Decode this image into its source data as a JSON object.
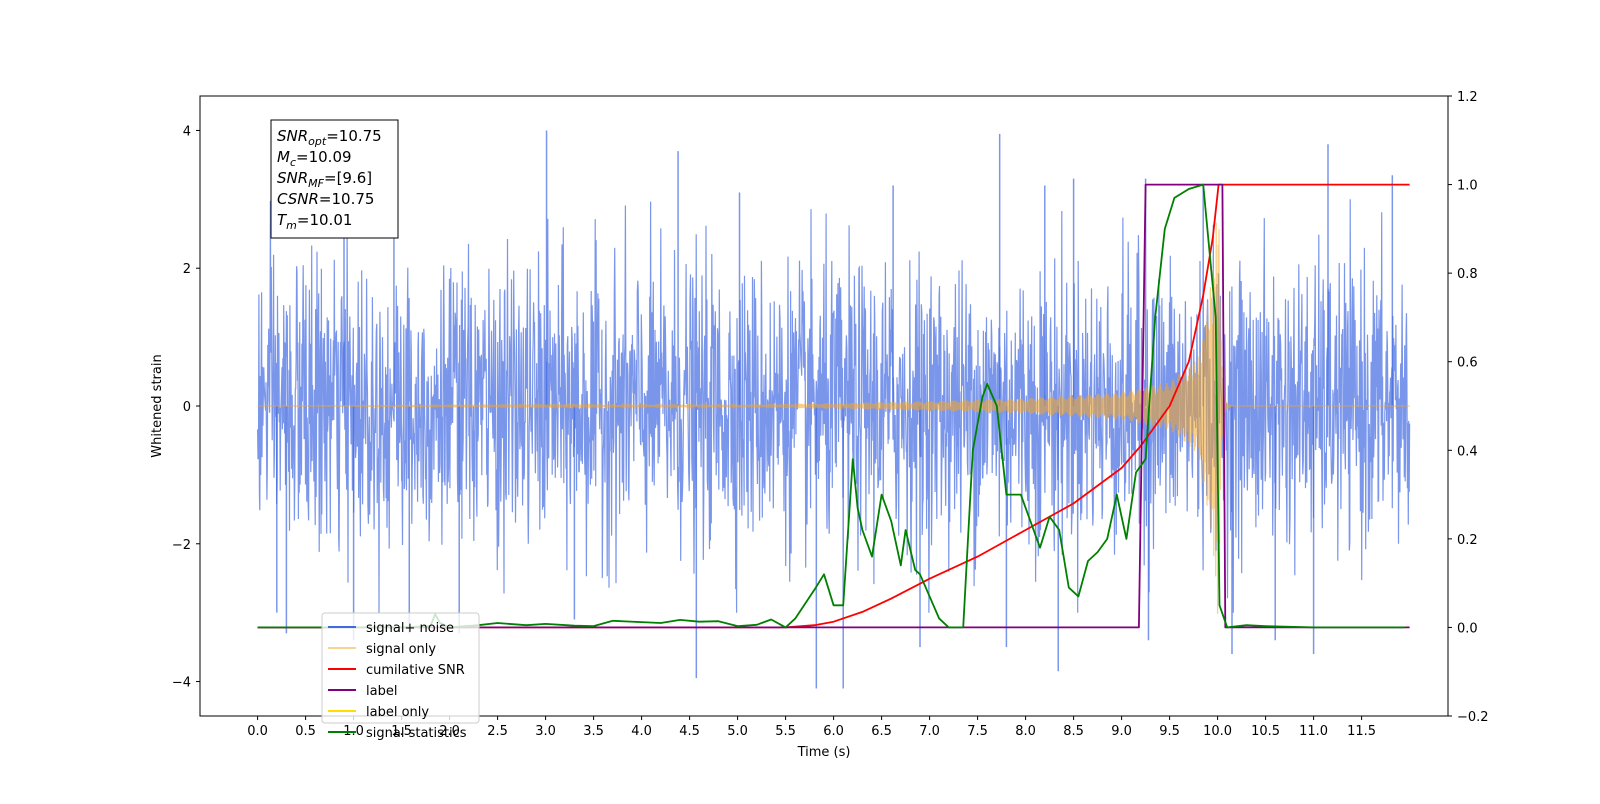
{
  "chart_data": {
    "type": "line",
    "xlabel": "Time (s)",
    "ylabel": "Whitened strain",
    "xlim": [
      -0.6,
      12.4
    ],
    "ylim": [
      -4.5,
      4.5
    ],
    "y2lim": [
      -0.2,
      1.2
    ],
    "x_ticks": [
      "0.0",
      "0.5",
      "1.0",
      "1.5",
      "2.0",
      "2.5",
      "3.0",
      "3.5",
      "4.0",
      "4.5",
      "5.0",
      "5.5",
      "6.0",
      "6.5",
      "7.0",
      "7.5",
      "8.0",
      "8.5",
      "9.0",
      "9.5",
      "10.0",
      "10.5",
      "11.0",
      "11.5"
    ],
    "y_ticks": [
      "−4",
      "−2",
      "0",
      "2",
      "4"
    ],
    "y2_ticks": [
      "−0.2",
      "0.0",
      "0.2",
      "0.4",
      "0.6",
      "0.8",
      "1.0",
      "1.2"
    ],
    "grid": false,
    "legend_position": "lower-left",
    "annotation": [
      {
        "main": "SNR",
        "sub": "opt",
        "rest": "=10.75"
      },
      {
        "main": "M",
        "sub": "c",
        "rest": "=10.09"
      },
      {
        "main": "SNR",
        "sub": "MF",
        "rest": "=[9.6]"
      },
      {
        "main": "CSNR",
        "sub": "",
        "rest": "=10.75"
      },
      {
        "main": "T",
        "sub": "m",
        "rest": "=10.01"
      }
    ],
    "series": [
      {
        "name": "signal+ noise",
        "axis": "left",
        "color": "#4169e1",
        "style": "noise",
        "x_range": [
          0.0,
          12.0
        ],
        "sigma": 1.0,
        "peak_points": [
          [
            0.9,
            2.7
          ],
          [
            1.42,
            3.6
          ],
          [
            3.01,
            4.0
          ],
          [
            4.38,
            3.7
          ],
          [
            5.02,
            3.1
          ],
          [
            6.62,
            3.2
          ],
          [
            7.73,
            3.95
          ],
          [
            8.5,
            3.3
          ],
          [
            9.85,
            3.2
          ],
          [
            11.15,
            3.8
          ],
          [
            11.82,
            3.35
          ],
          [
            9.25,
            3.3
          ],
          [
            8.2,
            3.2
          ],
          [
            0.3,
            -3.3
          ],
          [
            1.0,
            -3.4
          ],
          [
            1.58,
            -3.3
          ],
          [
            4.57,
            -3.95
          ],
          [
            5.82,
            -4.1
          ],
          [
            6.1,
            -4.1
          ],
          [
            7.8,
            -3.5
          ],
          [
            8.34,
            -3.85
          ],
          [
            9.28,
            -3.4
          ],
          [
            10.15,
            -3.6
          ],
          [
            11.0,
            -3.6
          ],
          [
            0.2,
            -3.0
          ],
          [
            2.1,
            -3.3
          ],
          [
            3.3,
            -3.1
          ],
          [
            6.9,
            -3.5
          ],
          [
            10.6,
            -3.4
          ]
        ]
      },
      {
        "name": "signal only",
        "axis": "left",
        "color": "#f5a623",
        "style": "chirp",
        "x_range": [
          0.0,
          12.0
        ],
        "merger_time": 10.01,
        "peak_amplitude": 3.3,
        "sample_envelope": [
          [
            5.0,
            0.02
          ],
          [
            6.0,
            0.04
          ],
          [
            7.0,
            0.07
          ],
          [
            8.0,
            0.11
          ],
          [
            9.0,
            0.2
          ],
          [
            9.5,
            0.35
          ],
          [
            9.8,
            0.7
          ],
          [
            9.95,
            2.0
          ],
          [
            10.01,
            3.3
          ]
        ]
      },
      {
        "name": "cumilative SNR",
        "axis": "right",
        "color": "#ff0000",
        "points": [
          [
            0.0,
            0.0
          ],
          [
            5.5,
            0.0
          ],
          [
            5.8,
            0.005
          ],
          [
            6.0,
            0.013
          ],
          [
            6.3,
            0.035
          ],
          [
            6.6,
            0.065
          ],
          [
            7.0,
            0.11
          ],
          [
            7.5,
            0.16
          ],
          [
            8.0,
            0.22
          ],
          [
            8.5,
            0.28
          ],
          [
            9.0,
            0.36
          ],
          [
            9.2,
            0.41
          ],
          [
            9.5,
            0.5
          ],
          [
            9.7,
            0.6
          ],
          [
            9.85,
            0.75
          ],
          [
            9.95,
            0.88
          ],
          [
            10.01,
            1.0
          ],
          [
            12.0,
            1.0
          ]
        ]
      },
      {
        "name": "label",
        "axis": "right",
        "color": "#800080",
        "points": [
          [
            0.0,
            0.0
          ],
          [
            9.18,
            0.0
          ],
          [
            9.25,
            1.0
          ],
          [
            10.05,
            1.0
          ],
          [
            10.08,
            0.0
          ],
          [
            12.0,
            0.0
          ]
        ]
      },
      {
        "name": "label only",
        "axis": "right",
        "color": "#ffdd00",
        "hidden": true,
        "points": [
          [
            0.0,
            0.0
          ],
          [
            12.0,
            0.0
          ]
        ]
      },
      {
        "name": "signal statistics",
        "axis": "right",
        "color": "#008000",
        "points": [
          [
            0.0,
            0.0
          ],
          [
            1.5,
            0.0
          ],
          [
            1.8,
            0.003
          ],
          [
            1.85,
            0.03
          ],
          [
            1.9,
            0.01
          ],
          [
            2.0,
            0.0
          ],
          [
            2.3,
            0.005
          ],
          [
            2.5,
            0.01
          ],
          [
            2.8,
            0.005
          ],
          [
            3.0,
            0.008
          ],
          [
            3.3,
            0.004
          ],
          [
            3.5,
            0.003
          ],
          [
            3.7,
            0.015
          ],
          [
            4.0,
            0.012
          ],
          [
            4.2,
            0.01
          ],
          [
            4.4,
            0.017
          ],
          [
            4.6,
            0.013
          ],
          [
            4.8,
            0.014
          ],
          [
            5.0,
            0.003
          ],
          [
            5.2,
            0.006
          ],
          [
            5.35,
            0.018
          ],
          [
            5.5,
            0.0
          ],
          [
            5.6,
            0.02
          ],
          [
            5.8,
            0.085
          ],
          [
            5.9,
            0.12
          ],
          [
            6.0,
            0.05
          ],
          [
            6.1,
            0.05
          ],
          [
            6.2,
            0.38
          ],
          [
            6.25,
            0.27
          ],
          [
            6.3,
            0.22
          ],
          [
            6.4,
            0.16
          ],
          [
            6.5,
            0.3
          ],
          [
            6.6,
            0.24
          ],
          [
            6.7,
            0.14
          ],
          [
            6.75,
            0.22
          ],
          [
            6.85,
            0.13
          ],
          [
            6.9,
            0.12
          ],
          [
            7.1,
            0.02
          ],
          [
            7.2,
            0.0
          ],
          [
            7.35,
            0.0
          ],
          [
            7.45,
            0.4
          ],
          [
            7.55,
            0.52
          ],
          [
            7.6,
            0.55
          ],
          [
            7.7,
            0.5
          ],
          [
            7.8,
            0.3
          ],
          [
            7.95,
            0.3
          ],
          [
            8.05,
            0.24
          ],
          [
            8.15,
            0.18
          ],
          [
            8.25,
            0.25
          ],
          [
            8.35,
            0.22
          ],
          [
            8.45,
            0.09
          ],
          [
            8.55,
            0.07
          ],
          [
            8.65,
            0.15
          ],
          [
            8.75,
            0.17
          ],
          [
            8.85,
            0.2
          ],
          [
            8.95,
            0.3
          ],
          [
            9.05,
            0.2
          ],
          [
            9.15,
            0.35
          ],
          [
            9.25,
            0.38
          ],
          [
            9.35,
            0.7
          ],
          [
            9.45,
            0.9
          ],
          [
            9.55,
            0.97
          ],
          [
            9.7,
            0.99
          ],
          [
            9.85,
            1.0
          ],
          [
            9.98,
            0.7
          ],
          [
            10.02,
            0.05
          ],
          [
            10.1,
            0.0
          ],
          [
            10.3,
            0.005
          ],
          [
            10.5,
            0.003
          ],
          [
            11.0,
            0.0
          ],
          [
            11.95,
            0.0
          ]
        ]
      }
    ]
  }
}
